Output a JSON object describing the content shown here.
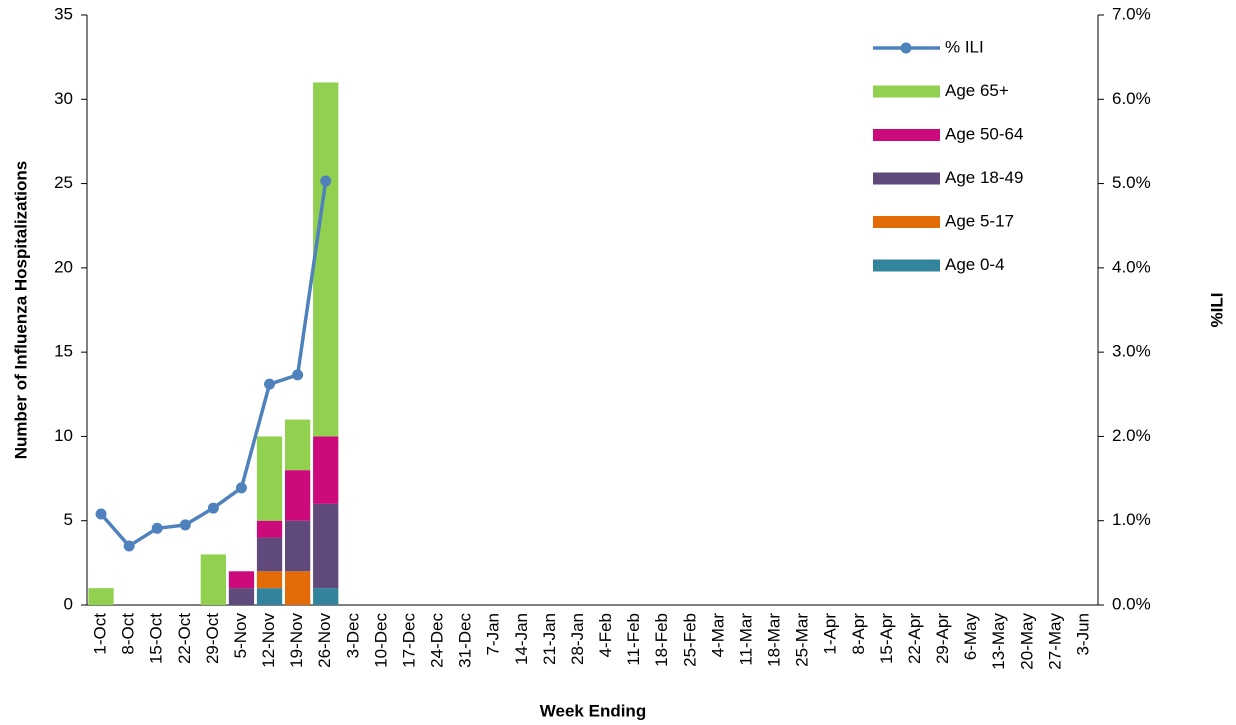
{
  "chart_data": {
    "type": "bar",
    "y_label": "Number of Influenza Hospitalizations",
    "y2_label": "%ILI",
    "x_label": "Week Ending",
    "categories": [
      "1-Oct",
      "8-Oct",
      "15-Oct",
      "22-Oct",
      "29-Oct",
      "5-Nov",
      "12-Nov",
      "19-Nov",
      "26-Nov",
      "3-Dec",
      "10-Dec",
      "17-Dec",
      "24-Dec",
      "31-Dec",
      "7-Jan",
      "14-Jan",
      "21-Jan",
      "28-Jan",
      "4-Feb",
      "11-Feb",
      "18-Feb",
      "25-Feb",
      "4-Mar",
      "11-Mar",
      "18-Mar",
      "25-Mar",
      "1-Apr",
      "8-Apr",
      "15-Apr",
      "22-Apr",
      "29-Apr",
      "6-May",
      "13-May",
      "20-May",
      "27-May",
      "3-Jun"
    ],
    "stacked": true,
    "series": [
      {
        "name": "Age 0-4",
        "color": "#31849b",
        "values": [
          0,
          0,
          0,
          0,
          0,
          0,
          1,
          0,
          1,
          null,
          null,
          null,
          null,
          null,
          null,
          null,
          null,
          null,
          null,
          null,
          null,
          null,
          null,
          null,
          null,
          null,
          null,
          null,
          null,
          null,
          null,
          null,
          null,
          null,
          null,
          null
        ]
      },
      {
        "name": "Age 5-17",
        "color": "#e36c09",
        "values": [
          0,
          0,
          0,
          0,
          0,
          0,
          1,
          2,
          0,
          null,
          null,
          null,
          null,
          null,
          null,
          null,
          null,
          null,
          null,
          null,
          null,
          null,
          null,
          null,
          null,
          null,
          null,
          null,
          null,
          null,
          null,
          null,
          null,
          null,
          null,
          null
        ]
      },
      {
        "name": "Age 18-49",
        "color": "#604a7b",
        "values": [
          0,
          0,
          0,
          0,
          0,
          1,
          2,
          3,
          5,
          null,
          null,
          null,
          null,
          null,
          null,
          null,
          null,
          null,
          null,
          null,
          null,
          null,
          null,
          null,
          null,
          null,
          null,
          null,
          null,
          null,
          null,
          null,
          null,
          null,
          null,
          null
        ]
      },
      {
        "name": "Age 50-64",
        "color": "#cc0a7c",
        "values": [
          0,
          0,
          0,
          0,
          0,
          1,
          1,
          3,
          4,
          null,
          null,
          null,
          null,
          null,
          null,
          null,
          null,
          null,
          null,
          null,
          null,
          null,
          null,
          null,
          null,
          null,
          null,
          null,
          null,
          null,
          null,
          null,
          null,
          null,
          null,
          null
        ]
      },
      {
        "name": "Age 65+",
        "color": "#92d050",
        "values": [
          1,
          0,
          0,
          0,
          3,
          0,
          5,
          3,
          21,
          null,
          null,
          null,
          null,
          null,
          null,
          null,
          null,
          null,
          null,
          null,
          null,
          null,
          null,
          null,
          null,
          null,
          null,
          null,
          null,
          null,
          null,
          null,
          null,
          null,
          null,
          null
        ]
      },
      {
        "name": "% ILI",
        "type": "line",
        "axis": "y2",
        "color": "#4f81bd",
        "values": [
          1.08,
          0.7,
          0.91,
          0.95,
          1.15,
          1.39,
          2.62,
          2.73,
          5.03,
          null,
          null,
          null,
          null,
          null,
          null,
          null,
          null,
          null,
          null,
          null,
          null,
          null,
          null,
          null,
          null,
          null,
          null,
          null,
          null,
          null,
          null,
          null,
          null,
          null,
          null,
          null
        ]
      }
    ],
    "ylim": [
      0,
      35
    ],
    "yticks": [
      0,
      5,
      10,
      15,
      20,
      25,
      30,
      35
    ],
    "y2lim": [
      0,
      7
    ],
    "y2ticks": [
      {
        "value": 0,
        "label": "0.0%"
      },
      {
        "value": 1,
        "label": "1.0%"
      },
      {
        "value": 2,
        "label": "2.0%"
      },
      {
        "value": 3,
        "label": "3.0%"
      },
      {
        "value": 4,
        "label": "4.0%"
      },
      {
        "value": 5,
        "label": "5.0%"
      },
      {
        "value": 6,
        "label": "6.0%"
      },
      {
        "value": 7,
        "label": "7.0%"
      }
    ],
    "grid": false,
    "legend": "top-right"
  }
}
